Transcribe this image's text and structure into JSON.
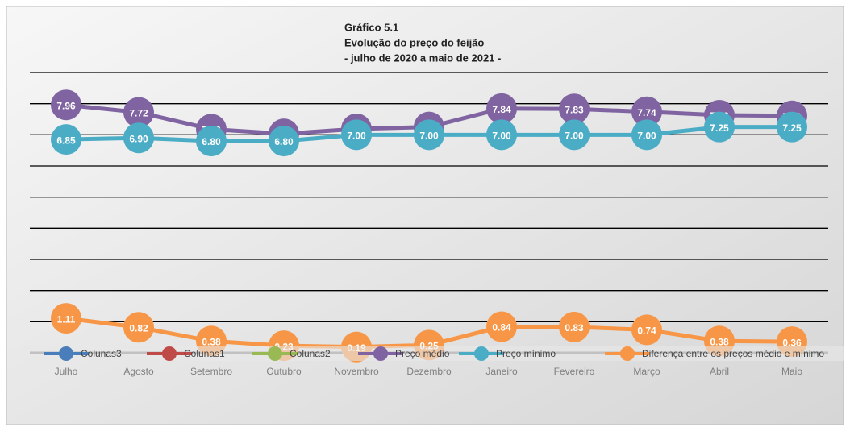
{
  "chart_data": {
    "type": "line",
    "title": [
      "Gráfico 5.1",
      "Evolução do preço do feijão",
      "- julho de 2020 a maio de 2021 -"
    ],
    "categories": [
      "Julho",
      "Agosto",
      "Setembro",
      "Outubro",
      "Novembro",
      "Dezembro",
      "Janeiro",
      "Fevereiro",
      "Março",
      "Abril",
      "Maio"
    ],
    "ylim": [
      0,
      9
    ],
    "yticks": [
      0,
      1,
      2,
      3,
      4,
      5,
      6,
      7,
      8,
      9
    ],
    "grid": true,
    "legend": "bottom",
    "series": [
      {
        "name": "Colunas3",
        "color": "#4a7ebb",
        "values": [
          null,
          null,
          null,
          null,
          null,
          null,
          null,
          null,
          null,
          null,
          null
        ]
      },
      {
        "name": "Colunas1",
        "color": "#be4b48",
        "values": [
          null,
          null,
          null,
          null,
          null,
          null,
          null,
          null,
          null,
          null,
          null
        ]
      },
      {
        "name": "Colunas2",
        "color": "#98b954",
        "values": [
          null,
          null,
          null,
          null,
          null,
          null,
          null,
          null,
          null,
          null,
          null
        ]
      },
      {
        "name": "Preço médio",
        "color": "#8064a2",
        "values": [
          7.96,
          7.72,
          7.18,
          7.03,
          7.19,
          7.25,
          7.84,
          7.83,
          7.74,
          7.63,
          7.61
        ],
        "value_labels": [
          "7.96",
          "7.72",
          "7.18",
          "7.03",
          "7.19",
          "7.25",
          "7.84",
          "7.83",
          "7.74",
          "7.63",
          "7.61"
        ]
      },
      {
        "name": "Preço mínimo",
        "color": "#4bacc6",
        "values": [
          6.85,
          6.9,
          6.8,
          6.8,
          7,
          7,
          7,
          7,
          7,
          7.25,
          7.25
        ],
        "value_labels": [
          "6.85",
          "6.90",
          "6.80",
          "6.80",
          "7.00",
          "7.00",
          "7.00",
          "7.00",
          "7.00",
          "7.25",
          "7.25"
        ]
      },
      {
        "name": "Diferença entre os preços médio e mínimo",
        "color": "#f79646",
        "values": [
          1.11,
          0.82,
          0.38,
          0.23,
          0.19,
          0.25,
          0.84,
          0.83,
          0.74,
          0.38,
          0.36
        ],
        "value_labels": [
          "1.11",
          "0.82",
          "0.38",
          "0.23",
          "0.19",
          "0.25",
          "0.84",
          "0.83",
          "0.74",
          "0.38",
          "0.36"
        ]
      }
    ]
  }
}
